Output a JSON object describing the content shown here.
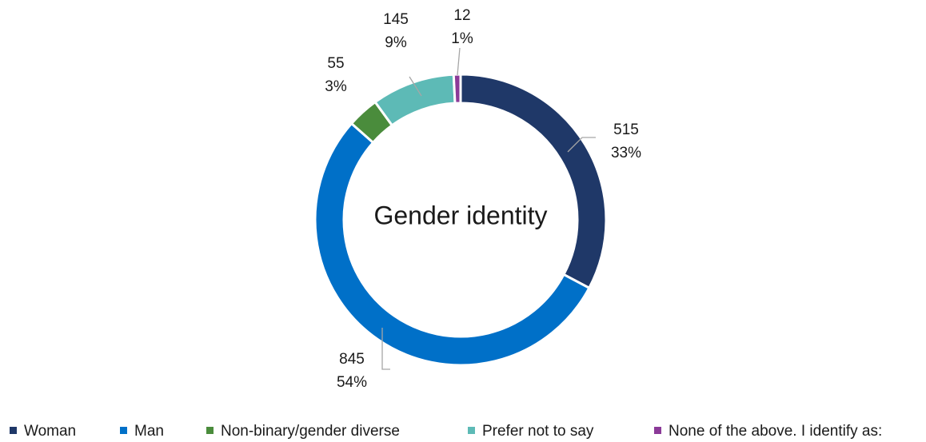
{
  "chart_data": {
    "type": "donut",
    "center_label": "Gender identity",
    "categories": [
      "Woman",
      "Man",
      "Non-binary/gender diverse",
      "Prefer not to say",
      "None of the above. I identify as:"
    ],
    "values": [
      515,
      845,
      55,
      145,
      12
    ],
    "percent_labels": [
      "33%",
      "54%",
      "3%",
      "9%",
      "1%"
    ],
    "colors": [
      "#1f3868",
      "#0070c8",
      "#4a8c3c",
      "#5dbab6",
      "#8b3a98"
    ],
    "legend": "bottom"
  }
}
